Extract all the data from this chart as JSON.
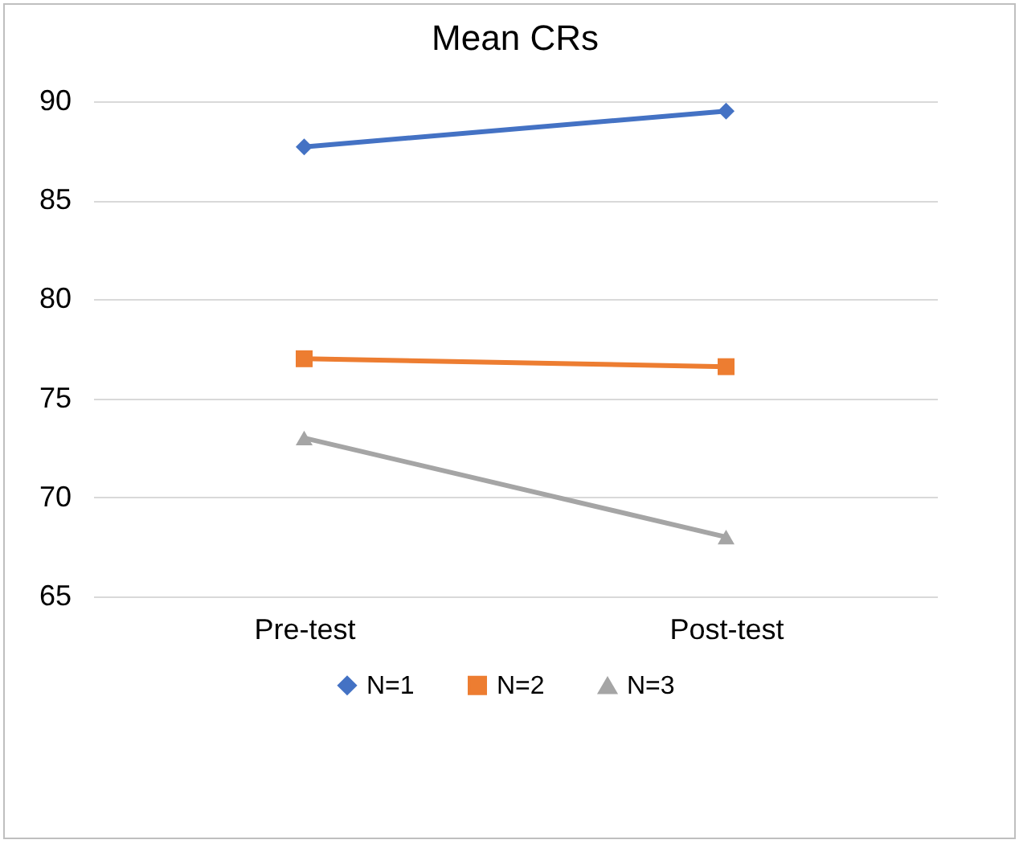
{
  "chart_data": {
    "type": "line",
    "title": "Mean CRs",
    "categories": [
      "Pre-test",
      "Post-test"
    ],
    "series": [
      {
        "name": "N=1",
        "color": "#4472c4",
        "marker": "diamond",
        "values": [
          87.7,
          89.5
        ]
      },
      {
        "name": "N=2",
        "color": "#ed7d31",
        "marker": "square",
        "values": [
          77.0,
          76.6
        ]
      },
      {
        "name": "N=3",
        "color": "#a5a5a5",
        "marker": "triangle",
        "values": [
          73.0,
          68.0
        ]
      }
    ],
    "ylim": [
      65,
      90
    ],
    "yticks": [
      65,
      70,
      75,
      80,
      85,
      90
    ],
    "grid": "y",
    "legend": "bottom"
  }
}
